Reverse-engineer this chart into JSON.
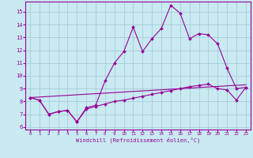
{
  "xlabel": "Windchill (Refroidissement éolien,°C)",
  "bg_color": "#c8eaf0",
  "grid_color": "#a0c8d8",
  "line_color": "#990099",
  "x_vals": [
    0,
    1,
    2,
    3,
    4,
    5,
    6,
    7,
    8,
    9,
    10,
    11,
    12,
    13,
    14,
    15,
    16,
    17,
    18,
    19,
    20,
    21,
    22,
    23
  ],
  "y_ticks": [
    6,
    7,
    8,
    9,
    10,
    11,
    12,
    13,
    14,
    15
  ],
  "ylim": [
    5.8,
    15.8
  ],
  "xlim": [
    -0.5,
    23.5
  ],
  "series1": [
    8.3,
    8.1,
    7.0,
    7.2,
    7.3,
    6.4,
    7.5,
    7.7,
    9.6,
    11.0,
    11.9,
    13.8,
    11.9,
    12.9,
    13.7,
    15.5,
    14.9,
    12.9,
    13.3,
    13.2,
    12.5,
    10.6,
    9.0,
    9.1
  ],
  "series2": [
    8.3,
    8.1,
    7.0,
    7.2,
    7.3,
    6.4,
    7.4,
    7.6,
    7.8,
    8.0,
    8.1,
    8.25,
    8.4,
    8.55,
    8.7,
    8.85,
    9.0,
    9.15,
    9.25,
    9.35,
    9.0,
    8.9,
    8.1,
    9.1
  ],
  "series3_x": [
    0,
    23
  ],
  "series3_y": [
    8.3,
    9.3
  ]
}
